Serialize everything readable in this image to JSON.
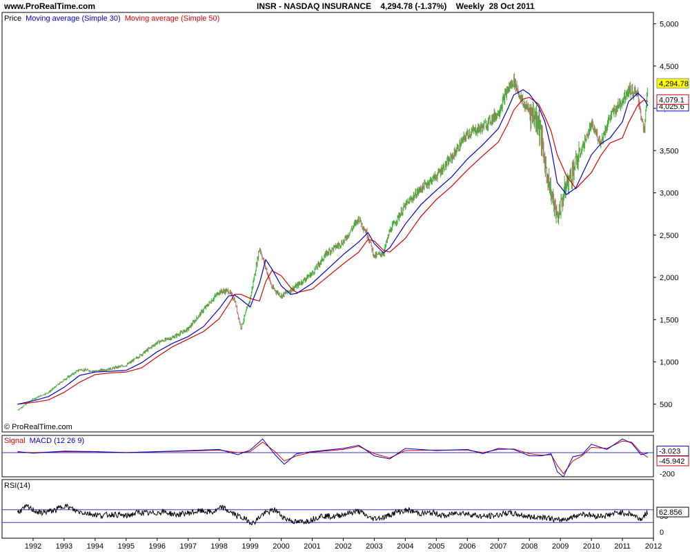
{
  "header": {
    "site": "www.ProRealTime.com",
    "symbol": "INSR - NASDAQ INSURANCE",
    "quote": "4,294.78 (-1.37%)",
    "period": "Weekly",
    "date": "28 Oct 2011"
  },
  "watermark": "© ProRealTime.com",
  "colors": {
    "up": "#2db52d",
    "down": "#b07060",
    "ma30": "#0000cc",
    "ma50": "#dd0000",
    "price_tag": "#ffff00",
    "macd_fill": "#c8a0a0",
    "rsi_band": "#3333cc"
  },
  "chart_data": [
    {
      "type": "line",
      "panel": "price",
      "legend": [
        "Price",
        "Moving average (Simple 30)",
        "Moving average (Simple 50)"
      ],
      "y_ticks": [
        "500",
        "1,000",
        "1,500",
        "2,000",
        "2,500",
        "3,000",
        "3,500",
        "4,000",
        "4,500",
        "5,000"
      ],
      "ylim": [
        0,
        5000
      ],
      "x_ticks": [
        "1992",
        "1993",
        "1994",
        "1995",
        "1996",
        "1997",
        "1998",
        "1999",
        "2000",
        "2001",
        "2002",
        "2003",
        "2004",
        "2005",
        "2006",
        "2007",
        "2008",
        "2009",
        "2010",
        "2011",
        "2012"
      ],
      "last_price_label": "4,294.78",
      "ma50_label": "4,079.1",
      "ma30_label": "4,025.6",
      "x": [
        1991.5,
        1992.0,
        1992.5,
        1993.0,
        1993.5,
        1994.0,
        1994.5,
        1995.0,
        1995.5,
        1996.0,
        1996.5,
        1997.0,
        1997.5,
        1998.0,
        1998.3,
        1998.5,
        1998.7,
        1999.0,
        1999.3,
        1999.5,
        1999.7,
        2000.0,
        2000.3,
        2000.5,
        2001.0,
        2001.5,
        2002.0,
        2002.5,
        2002.8,
        2003.0,
        2003.3,
        2003.5,
        2004.0,
        2004.5,
        2005.0,
        2005.5,
        2006.0,
        2006.5,
        2007.0,
        2007.3,
        2007.5,
        2007.8,
        2008.0,
        2008.3,
        2008.5,
        2008.7,
        2008.9,
        2009.2,
        2009.5,
        2010.0,
        2010.3,
        2010.6,
        2011.0,
        2011.2,
        2011.5,
        2011.7,
        2011.82
      ],
      "series": [
        {
          "name": "Price",
          "values": [
            430,
            560,
            640,
            790,
            910,
            890,
            920,
            960,
            1090,
            1230,
            1290,
            1390,
            1620,
            1830,
            1840,
            1730,
            1400,
            1750,
            2350,
            2110,
            1880,
            1780,
            1850,
            1900,
            2050,
            2300,
            2420,
            2700,
            2490,
            2250,
            2290,
            2550,
            2850,
            3050,
            3200,
            3420,
            3700,
            3780,
            3950,
            4220,
            4330,
            4050,
            3980,
            3850,
            3350,
            3000,
            2700,
            3100,
            3350,
            3800,
            3600,
            3900,
            4100,
            4230,
            4150,
            3700,
            4290
          ]
        },
        {
          "name": "Moving average (Simple 30)",
          "values": [
            500,
            540,
            590,
            700,
            840,
            880,
            890,
            900,
            990,
            1120,
            1220,
            1300,
            1420,
            1630,
            1780,
            1790,
            1740,
            1650,
            1930,
            2210,
            2100,
            1900,
            1800,
            1810,
            1930,
            2100,
            2270,
            2420,
            2530,
            2400,
            2290,
            2350,
            2630,
            2860,
            3030,
            3190,
            3400,
            3570,
            3760,
            3990,
            4160,
            4220,
            4170,
            4020,
            3840,
            3530,
            3120,
            2980,
            3060,
            3450,
            3580,
            3650,
            3840,
            4080,
            4180,
            4110,
            4030
          ]
        },
        {
          "name": "Moving average (Simple 50)",
          "values": [
            500,
            520,
            550,
            640,
            760,
            850,
            870,
            880,
            930,
            1060,
            1180,
            1270,
            1360,
            1510,
            1680,
            1800,
            1800,
            1750,
            1720,
            1950,
            2080,
            2020,
            1880,
            1820,
            1860,
            2010,
            2160,
            2300,
            2450,
            2430,
            2320,
            2300,
            2460,
            2720,
            2920,
            3080,
            3270,
            3440,
            3600,
            3810,
            3980,
            4110,
            4130,
            4050,
            3900,
            3730,
            3450,
            3200,
            3050,
            3240,
            3440,
            3590,
            3650,
            3830,
            4040,
            4100,
            4079
          ]
        }
      ]
    },
    {
      "type": "line",
      "panel": "macd",
      "legend": [
        "Signal",
        "MACD (12 26 9)"
      ],
      "y_ticks": [
        "-200"
      ],
      "ylim": [
        -230,
        150
      ],
      "signal_label": "-45.942",
      "macd_label": "-3.023",
      "x": [
        1991.5,
        1992.0,
        1993.0,
        1994.0,
        1995.0,
        1996.0,
        1997.0,
        1998.0,
        1998.6,
        1999.0,
        1999.4,
        1999.8,
        2000.1,
        2000.5,
        2001.0,
        2002.0,
        2002.5,
        2003.0,
        2003.5,
        2004.0,
        2005.0,
        2006.0,
        2006.5,
        2007.0,
        2007.5,
        2008.0,
        2008.4,
        2008.7,
        2008.9,
        2009.1,
        2009.4,
        2009.7,
        2010.0,
        2010.5,
        2011.0,
        2011.3,
        2011.6,
        2011.82
      ],
      "series": [
        {
          "name": "MACD (12 26 9)",
          "values": [
            10,
            -5,
            15,
            10,
            0,
            10,
            20,
            30,
            -20,
            25,
            130,
            -20,
            -110,
            -10,
            10,
            40,
            70,
            -30,
            -60,
            40,
            20,
            30,
            -10,
            40,
            30,
            -30,
            -30,
            -10,
            -180,
            -230,
            -40,
            -20,
            80,
            30,
            130,
            90,
            -20,
            -3
          ]
        },
        {
          "name": "Signal",
          "values": [
            5,
            0,
            10,
            8,
            2,
            8,
            15,
            25,
            0,
            10,
            100,
            10,
            -80,
            -30,
            5,
            30,
            60,
            -10,
            -50,
            20,
            25,
            25,
            0,
            30,
            35,
            -10,
            -25,
            -20,
            -120,
            -200,
            -80,
            -30,
            50,
            40,
            110,
            100,
            0,
            -46
          ]
        }
      ]
    },
    {
      "type": "line",
      "panel": "rsi",
      "legend": [
        "RSI(14)"
      ],
      "y_ticks": [
        "50",
        "0"
      ],
      "ylim": [
        0,
        100
      ],
      "band_levels": [
        70,
        30
      ],
      "value_label": "62.856",
      "x": [
        1991.5,
        1991.8,
        1992.2,
        1992.7,
        1993.0,
        1993.4,
        1993.8,
        1994.2,
        1994.6,
        1995.0,
        1995.4,
        1995.8,
        1996.2,
        1996.6,
        1997.0,
        1997.4,
        1997.8,
        1998.1,
        1998.4,
        1998.8,
        1999.1,
        1999.4,
        1999.8,
        2000.1,
        2000.5,
        2000.9,
        2001.3,
        2001.7,
        2002.1,
        2002.5,
        2002.9,
        2003.3,
        2003.7,
        2004.1,
        2004.5,
        2004.9,
        2005.3,
        2005.7,
        2006.1,
        2006.5,
        2006.9,
        2007.3,
        2007.7,
        2008.1,
        2008.5,
        2008.9,
        2009.3,
        2009.7,
        2010.1,
        2010.5,
        2010.9,
        2011.3,
        2011.6,
        2011.82
      ],
      "series": [
        {
          "name": "RSI(14)",
          "values": [
            62,
            80,
            60,
            68,
            84,
            66,
            58,
            52,
            56,
            50,
            62,
            58,
            64,
            54,
            60,
            66,
            62,
            78,
            60,
            42,
            28,
            56,
            70,
            44,
            30,
            36,
            52,
            48,
            58,
            66,
            42,
            46,
            62,
            68,
            58,
            60,
            50,
            62,
            56,
            48,
            52,
            60,
            54,
            46,
            48,
            36,
            44,
            58,
            50,
            52,
            62,
            56,
            40,
            63
          ]
        }
      ]
    }
  ]
}
